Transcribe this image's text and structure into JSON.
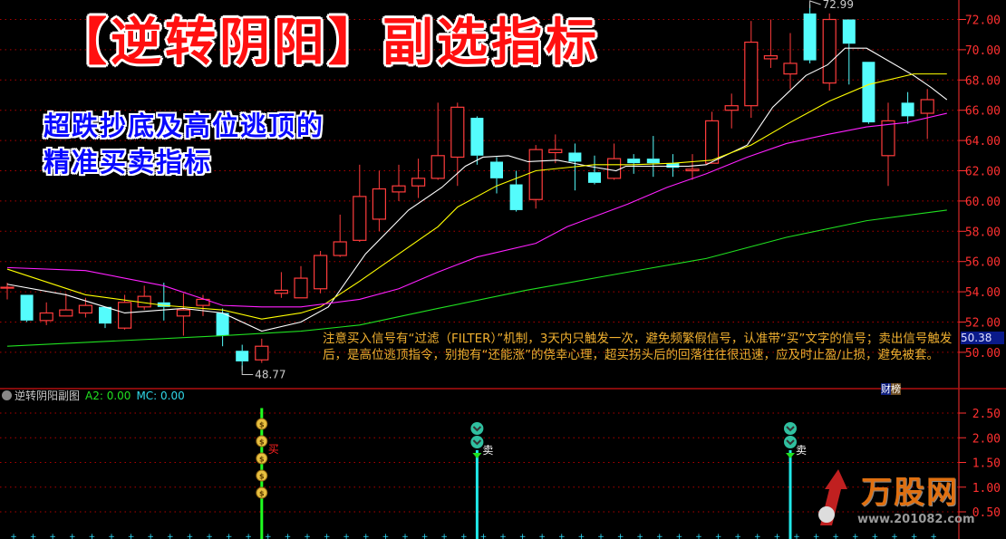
{
  "title": "【逆转阴阳】副选指标",
  "subtitle_lines": [
    "超跌抄底及高位逃顶的",
    "精准买卖指标"
  ],
  "note": "注意买入信号有“过滤（FILTER）”机制，3天内只触发一次，避免频繁假信号，认准带“买”文字的信号；卖出信号触发后，是高位逃顶指令，别抱有“还能涨”的侥幸心理，超买拐头后的回落往往很迅速，应及时止盈/止损，避免被套。",
  "badge": [
    "财",
    "榜"
  ],
  "current_price": "50.38",
  "sub_header": {
    "name": "逆转阴阳副图",
    "a2": "A2: 0.00",
    "mc": "MC: 0.00"
  },
  "logo": {
    "name": "万股网",
    "url": "www.201082.com"
  },
  "colors": {
    "up": "#ff3c3c",
    "down": "#54fcfc",
    "ma1": "#ffffff",
    "ma2": "#ffff00",
    "ma3": "#ff20ff",
    "ma4": "#20e020",
    "axis": "#ff3030",
    "buy": "#20ff20",
    "sell": "#20e8e8"
  },
  "chart_data": [
    {
      "type": "candlestick",
      "ylim": [
        50,
        72
      ],
      "yticks": [
        "72.00",
        "70.00",
        "68.00",
        "66.00",
        "64.00",
        "62.00",
        "60.00",
        "58.00",
        "56.00",
        "54.00",
        "52.00",
        "50.00"
      ],
      "ytick_values": [
        72,
        70,
        68,
        66,
        64,
        62,
        60,
        58,
        56,
        54,
        52,
        50
      ],
      "grid": true,
      "high_label": "72.99",
      "low_label": "48.77",
      "candles_ohlc": [
        [
          54.3,
          54.6,
          53.5,
          54.3
        ],
        [
          53.8,
          53.8,
          52.0,
          52.1
        ],
        [
          52.1,
          53.3,
          51.8,
          52.6
        ],
        [
          52.4,
          53.9,
          52.4,
          52.8
        ],
        [
          52.6,
          53.6,
          52.3,
          53.1
        ],
        [
          53.0,
          53.0,
          51.6,
          51.9
        ],
        [
          51.6,
          53.8,
          51.5,
          53.3
        ],
        [
          53.0,
          54.4,
          52.8,
          53.7
        ],
        [
          53.3,
          54.6,
          52.1,
          53.0
        ],
        [
          52.4,
          53.9,
          51.1,
          52.8
        ],
        [
          53.1,
          53.8,
          52.4,
          53.5
        ],
        [
          52.6,
          52.9,
          50.4,
          51.1
        ],
        [
          50.1,
          50.5,
          48.77,
          49.4
        ],
        [
          49.5,
          50.9,
          49.3,
          50.4
        ],
        [
          53.9,
          55.3,
          53.6,
          54.1
        ],
        [
          53.6,
          55.7,
          53.6,
          54.9
        ],
        [
          54.2,
          56.7,
          53.9,
          56.4
        ],
        [
          56.4,
          59.1,
          56.3,
          57.3
        ],
        [
          57.4,
          62.4,
          57.3,
          60.3
        ],
        [
          58.8,
          62.0,
          58.0,
          60.8
        ],
        [
          60.6,
          62.4,
          60.0,
          61.0
        ],
        [
          61.0,
          62.8,
          60.2,
          61.5
        ],
        [
          61.5,
          66.5,
          61.4,
          63.0
        ],
        [
          62.9,
          66.5,
          61.0,
          66.2
        ],
        [
          65.5,
          65.6,
          62.4,
          63.0
        ],
        [
          62.6,
          62.9,
          60.5,
          61.5
        ],
        [
          61.1,
          62.0,
          59.3,
          59.4
        ],
        [
          60.1,
          63.7,
          59.5,
          63.4
        ],
        [
          63.2,
          64.4,
          62.5,
          63.4
        ],
        [
          63.2,
          63.8,
          60.7,
          62.6
        ],
        [
          61.9,
          63.0,
          61.1,
          61.2
        ],
        [
          61.5,
          63.8,
          61.4,
          62.8
        ],
        [
          62.8,
          63.1,
          61.8,
          62.5
        ],
        [
          62.8,
          64.3,
          61.6,
          62.5
        ],
        [
          62.5,
          63.1,
          61.6,
          62.2
        ],
        [
          62.0,
          63.1,
          61.4,
          62.1
        ],
        [
          62.5,
          65.9,
          62.5,
          65.3
        ],
        [
          66.0,
          67.1,
          64.8,
          66.3
        ],
        [
          66.3,
          71.9,
          65.5,
          70.5
        ],
        [
          69.4,
          72.0,
          68.8,
          69.6
        ],
        [
          68.4,
          71.1,
          67.4,
          69.1
        ],
        [
          72.4,
          72.99,
          69.1,
          69.3
        ],
        [
          67.8,
          72.4,
          67.3,
          72.0
        ],
        [
          72.0,
          72.0,
          67.7,
          70.4
        ],
        [
          69.2,
          69.2,
          65.1,
          65.2
        ],
        [
          63.0,
          66.5,
          61.0,
          65.3
        ],
        [
          66.5,
          67.2,
          65.1,
          65.6
        ],
        [
          65.8,
          67.4,
          64.1,
          66.7
        ]
      ],
      "lines": [
        {
          "color_key": "ma1",
          "points": [
            [
              0,
              54.5
            ],
            [
              3,
              53.8
            ],
            [
              6,
              52.6
            ],
            [
              9,
              52.9
            ],
            [
              11,
              52.6
            ],
            [
              13,
              51.4
            ],
            [
              15,
              52.0
            ],
            [
              16.4,
              53.0
            ],
            [
              18.3,
              56.5
            ],
            [
              20.5,
              59.4
            ],
            [
              22.2,
              60.9
            ],
            [
              23.4,
              62.3
            ],
            [
              24.3,
              62.9
            ],
            [
              25.6,
              63.0
            ],
            [
              26.6,
              62.6
            ],
            [
              28.1,
              62.7
            ],
            [
              29.7,
              62.3
            ],
            [
              31.1,
              62.0
            ],
            [
              31.6,
              62.3
            ],
            [
              34.8,
              62.3
            ],
            [
              35.7,
              62.4
            ],
            [
              37.8,
              63.7
            ],
            [
              39.1,
              66.2
            ],
            [
              40.8,
              68.3
            ],
            [
              41.9,
              69.0
            ],
            [
              42.8,
              70.1
            ],
            [
              43.9,
              70.1
            ],
            [
              46.3,
              68.3
            ],
            [
              47.2,
              67.5
            ],
            [
              48,
              66.7
            ]
          ]
        },
        {
          "color_key": "ma2",
          "points": [
            [
              0,
              55.5
            ],
            [
              4,
              53.8
            ],
            [
              8,
              53.1
            ],
            [
              11,
              52.8
            ],
            [
              13,
              52.2
            ],
            [
              15,
              52.6
            ],
            [
              16,
              53.0
            ],
            [
              18,
              54.7
            ],
            [
              20,
              56.5
            ],
            [
              22,
              58.3
            ],
            [
              23,
              59.6
            ],
            [
              25,
              61.0
            ],
            [
              27,
              62.0
            ],
            [
              30,
              62.4
            ],
            [
              32,
              62.4
            ],
            [
              34,
              62.5
            ],
            [
              36,
              62.7
            ],
            [
              38,
              63.7
            ],
            [
              40,
              65.2
            ],
            [
              42,
              66.6
            ],
            [
              44,
              67.7
            ],
            [
              46.3,
              68.4
            ],
            [
              48,
              68.4
            ]
          ]
        },
        {
          "color_key": "ma3",
          "points": [
            [
              0,
              55.6
            ],
            [
              4,
              55.4
            ],
            [
              8,
              54.4
            ],
            [
              11,
              53.1
            ],
            [
              13,
              53.0
            ],
            [
              15,
              53.0
            ],
            [
              18,
              53.5
            ],
            [
              20,
              54.2
            ],
            [
              22,
              55.3
            ],
            [
              24,
              56.3
            ],
            [
              27,
              57.2
            ],
            [
              28.6,
              58.3
            ],
            [
              31.7,
              59.8
            ],
            [
              33.7,
              60.9
            ],
            [
              35.7,
              61.8
            ],
            [
              37.8,
              62.9
            ],
            [
              39.8,
              63.8
            ],
            [
              41.9,
              64.4
            ],
            [
              43.9,
              64.9
            ],
            [
              46,
              65.2
            ],
            [
              48,
              65.8
            ]
          ]
        },
        {
          "color_key": "ma4",
          "points": [
            [
              0,
              50.4
            ],
            [
              11,
              51.1
            ],
            [
              15,
              51.4
            ],
            [
              18,
              51.8
            ],
            [
              22,
              52.9
            ],
            [
              26.5,
              54.1
            ],
            [
              31.7,
              55.3
            ],
            [
              35.7,
              56.2
            ],
            [
              39.8,
              57.6
            ],
            [
              43.9,
              58.7
            ],
            [
              48,
              59.4
            ]
          ]
        }
      ]
    },
    {
      "type": "signal",
      "ylim": [
        0,
        2.8
      ],
      "yticks": [
        "2.50",
        "2.00",
        "1.50",
        "1.00",
        "0.50"
      ],
      "ytick_values": [
        2.5,
        2.0,
        1.5,
        1.0,
        0.5
      ],
      "signals": [
        {
          "index": 13,
          "kind": "buy",
          "label": "买",
          "value": 2.6
        },
        {
          "index": 24,
          "kind": "sell",
          "label": "卖",
          "value": 1.75
        },
        {
          "index": 40,
          "kind": "sell",
          "label": "卖",
          "value": 1.75
        }
      ]
    }
  ]
}
